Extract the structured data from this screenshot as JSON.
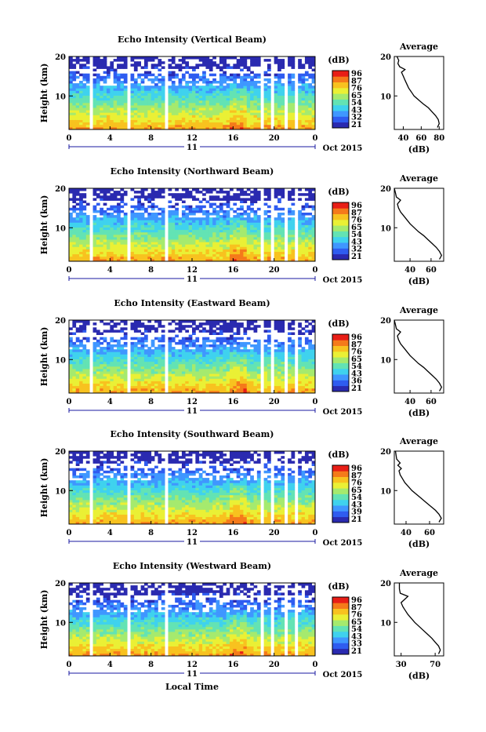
{
  "figure": {
    "xlabel": "Local Time",
    "date_label": "Oct 2015",
    "day_label": "11",
    "colorbar_unit": "(dB)",
    "avg_title": "Average",
    "avg_unit": "(dB)",
    "ylabel": "Height (km)"
  },
  "colors": {
    "scale": [
      "#2a2ab0",
      "#2f5cf0",
      "#3f97ff",
      "#3fd2ee",
      "#63e3b4",
      "#a5ea6e",
      "#eaf035",
      "#f8c21f",
      "#f57a1a",
      "#e81e16"
    ]
  },
  "chart_data": [
    {
      "type": "heatmap",
      "title": "Echo Intensity (Vertical Beam)",
      "x_ticks": [
        "0",
        "4",
        "8",
        "12",
        "16",
        "20",
        "0"
      ],
      "y_ticks": [
        "20",
        "10"
      ],
      "colorbar_ticks": [
        "96",
        "87",
        "76",
        "65",
        "54",
        "43",
        "32",
        "21"
      ],
      "xlim": [
        0,
        24
      ],
      "ylim": [
        1.5,
        20
      ],
      "avg_x_ticks": [
        "40",
        "60",
        "80"
      ],
      "avg_xlim": [
        30,
        85
      ],
      "avg_profile": [
        [
          78,
          2
        ],
        [
          80,
          3
        ],
        [
          79,
          4
        ],
        [
          76,
          5
        ],
        [
          72,
          6
        ],
        [
          68,
          7
        ],
        [
          62,
          8
        ],
        [
          57,
          9
        ],
        [
          52,
          10
        ],
        [
          49,
          11
        ],
        [
          46,
          12
        ],
        [
          44,
          13
        ],
        [
          42,
          14
        ],
        [
          40,
          15
        ],
        [
          38,
          16
        ],
        [
          42,
          16.7
        ],
        [
          36,
          17.4
        ],
        [
          34,
          18.2
        ],
        [
          35,
          19
        ],
        [
          33,
          20
        ]
      ]
    },
    {
      "type": "heatmap",
      "title": "Echo Intensity (Northward Beam)",
      "x_ticks": [
        "0",
        "4",
        "8",
        "12",
        "16",
        "20",
        "0"
      ],
      "y_ticks": [
        "20",
        "10"
      ],
      "colorbar_ticks": [
        "96",
        "87",
        "76",
        "65",
        "54",
        "43",
        "32",
        "21"
      ],
      "xlim": [
        0,
        24
      ],
      "ylim": [
        1.5,
        20
      ],
      "avg_x_ticks": [
        "40",
        "60"
      ],
      "avg_xlim": [
        25,
        72
      ],
      "avg_profile": [
        [
          68,
          2
        ],
        [
          70,
          3
        ],
        [
          68,
          4
        ],
        [
          65,
          5
        ],
        [
          61,
          6
        ],
        [
          57,
          7
        ],
        [
          53,
          8
        ],
        [
          48,
          9
        ],
        [
          44,
          10
        ],
        [
          40,
          11
        ],
        [
          37,
          12
        ],
        [
          34,
          13
        ],
        [
          31,
          14
        ],
        [
          29,
          15
        ],
        [
          28,
          16
        ],
        [
          31,
          17
        ],
        [
          27,
          17.8
        ],
        [
          26,
          19
        ],
        [
          25,
          20
        ]
      ]
    },
    {
      "type": "heatmap",
      "title": "Echo Intensity (Eastward Beam)",
      "x_ticks": [
        "0",
        "4",
        "8",
        "12",
        "16",
        "20",
        "0"
      ],
      "y_ticks": [
        "20",
        "10"
      ],
      "colorbar_ticks": [
        "96",
        "87",
        "76",
        "65",
        "54",
        "43",
        "36",
        "21"
      ],
      "xlim": [
        0,
        24
      ],
      "ylim": [
        1.5,
        20
      ],
      "avg_x_ticks": [
        "40",
        "60"
      ],
      "avg_xlim": [
        25,
        72
      ],
      "avg_profile": [
        [
          68,
          2
        ],
        [
          70,
          3
        ],
        [
          68,
          4
        ],
        [
          65,
          5
        ],
        [
          61,
          6
        ],
        [
          57,
          7
        ],
        [
          53,
          8
        ],
        [
          48,
          9
        ],
        [
          44,
          10
        ],
        [
          40,
          11
        ],
        [
          37,
          12
        ],
        [
          34,
          13
        ],
        [
          31,
          14
        ],
        [
          29,
          15
        ],
        [
          28,
          16
        ],
        [
          31,
          17
        ],
        [
          27,
          17.8
        ],
        [
          26,
          19
        ],
        [
          25,
          20
        ]
      ]
    },
    {
      "type": "heatmap",
      "title": "Echo Intensity (Southward Beam)",
      "x_ticks": [
        "0",
        "4",
        "8",
        "12",
        "16",
        "20",
        "0"
      ],
      "y_ticks": [
        "20",
        "10"
      ],
      "colorbar_ticks": [
        "96",
        "87",
        "76",
        "65",
        "54",
        "43",
        "39",
        "21"
      ],
      "xlim": [
        0,
        24
      ],
      "ylim": [
        1.5,
        20
      ],
      "avg_x_ticks": [
        "40",
        "60"
      ],
      "avg_xlim": [
        30,
        72
      ],
      "avg_profile": [
        [
          68,
          2
        ],
        [
          70,
          3
        ],
        [
          68,
          4
        ],
        [
          65,
          5
        ],
        [
          61,
          6
        ],
        [
          57,
          7
        ],
        [
          53,
          8
        ],
        [
          49,
          9
        ],
        [
          45,
          10
        ],
        [
          42,
          11
        ],
        [
          39,
          12
        ],
        [
          37,
          13
        ],
        [
          35,
          14
        ],
        [
          34,
          15
        ],
        [
          36,
          15.6
        ],
        [
          33,
          16.4
        ],
        [
          35,
          17
        ],
        [
          32,
          18
        ],
        [
          31,
          20
        ]
      ]
    },
    {
      "type": "heatmap",
      "title": "Echo Intensity (Westward Beam)",
      "x_ticks": [
        "0",
        "4",
        "8",
        "12",
        "16",
        "20",
        "0"
      ],
      "y_ticks": [
        "20",
        "10"
      ],
      "colorbar_ticks": [
        "96",
        "87",
        "76",
        "65",
        "54",
        "43",
        "33",
        "21"
      ],
      "xlim": [
        0,
        24
      ],
      "ylim": [
        1.5,
        20
      ],
      "avg_x_ticks": [
        "30",
        "70"
      ],
      "avg_xlim": [
        22,
        80
      ],
      "avg_profile": [
        [
          74,
          2
        ],
        [
          76,
          3
        ],
        [
          74,
          4
        ],
        [
          70,
          5
        ],
        [
          66,
          6
        ],
        [
          61,
          7
        ],
        [
          56,
          8
        ],
        [
          51,
          9
        ],
        [
          46,
          10
        ],
        [
          42,
          11
        ],
        [
          38,
          12
        ],
        [
          35,
          13
        ],
        [
          32,
          14
        ],
        [
          30,
          15
        ],
        [
          38,
          16.6
        ],
        [
          29,
          17.4
        ],
        [
          28,
          18.5
        ],
        [
          28,
          20
        ]
      ]
    }
  ]
}
